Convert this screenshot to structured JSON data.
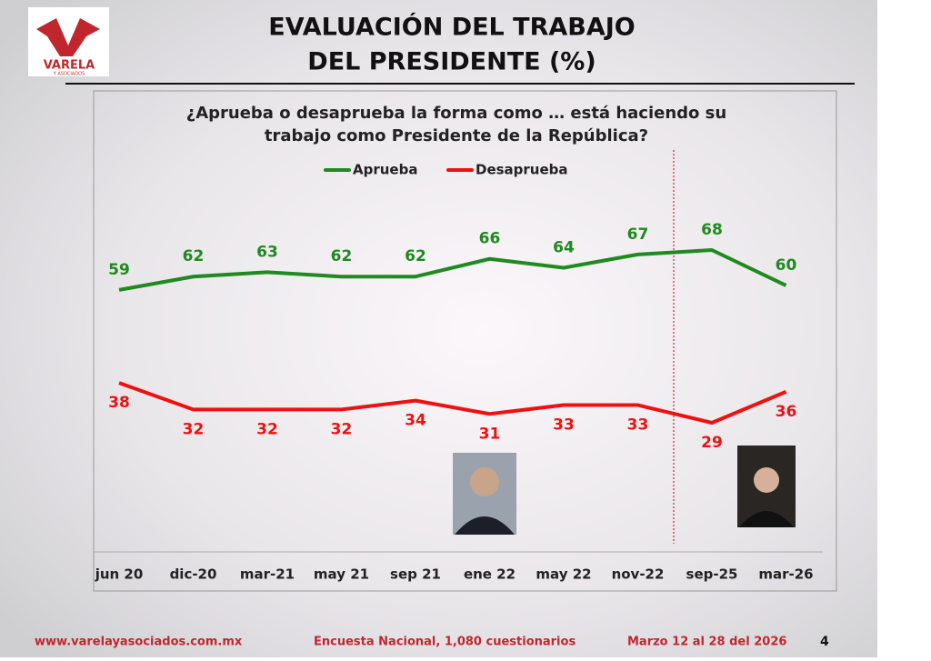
{
  "chart_data": {
    "type": "line",
    "title": [
      "EVALUACIÓN DEL TRABAJO",
      "DEL PRESIDENTE (%)"
    ],
    "subtitle": [
      "¿Aprueba o desaprueba la forma como … está haciendo su",
      "trabajo como Presidente de la República?"
    ],
    "categories": [
      "jun 20",
      "dic-20",
      "mar-21",
      "may 21",
      "sep 21",
      "ene 22",
      "may 22",
      "nov-22",
      "sep-25",
      "mar-26"
    ],
    "series": [
      {
        "name": "Aprueba",
        "color": "#1f8a1f",
        "values": [
          59,
          62,
          63,
          62,
          62,
          66,
          64,
          67,
          68,
          60
        ]
      },
      {
        "name": "Desaprueba",
        "color": "#ee1111",
        "values": [
          38,
          32,
          32,
          32,
          34,
          31,
          33,
          33,
          29,
          36
        ]
      }
    ],
    "legend": "top"
  },
  "logo": {
    "name": "VARELA",
    "tagline": "Y ASOCIADOS"
  },
  "footer": {
    "website": "www.varelayasociados.com.mx",
    "survey": "Encuesta Nacional, 1,080 cuestionarios",
    "dates": "Marzo 12 al 28 del 2026",
    "page": "4"
  }
}
